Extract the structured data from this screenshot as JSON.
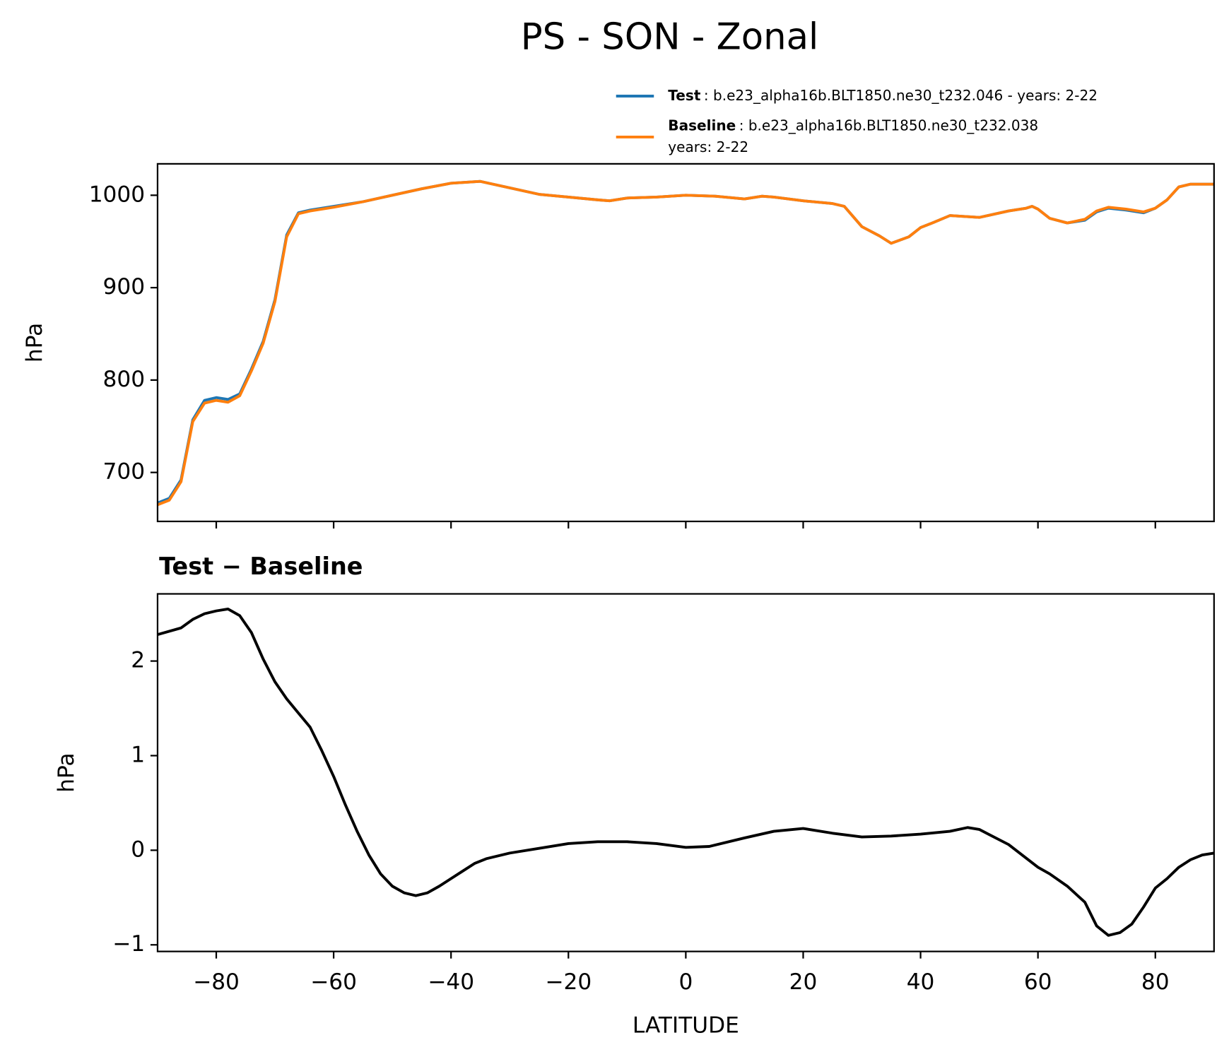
{
  "chart_data": [
    {
      "type": "line",
      "title": "PS - SON - Zonal",
      "ylabel": "hPa",
      "x": [
        -90,
        -88,
        -86,
        -84,
        -82,
        -80,
        -78,
        -76,
        -74,
        -72,
        -70,
        -68,
        -66,
        -64,
        -60,
        -55,
        -50,
        -45,
        -40,
        -35,
        -30,
        -25,
        -20,
        -15,
        -13,
        -10,
        -5,
        0,
        5,
        10,
        13,
        15,
        20,
        25,
        27,
        30,
        33,
        35,
        38,
        40,
        42,
        45,
        50,
        55,
        58,
        59,
        60,
        62,
        65,
        68,
        70,
        72,
        75,
        78,
        80,
        82,
        84,
        86,
        88,
        90
      ],
      "series": [
        {
          "name": "Test",
          "description": [
            ": b.e23_alpha16b.BLT1850.ne30_t232.046 - years: 2-22"
          ],
          "color": "#1f77b4",
          "values": [
            667,
            672,
            692,
            757,
            778,
            781,
            779,
            785,
            812,
            842,
            887,
            957,
            981,
            984,
            988,
            993,
            1000,
            1007,
            1013,
            1015,
            1008,
            1001,
            998,
            995,
            994,
            997,
            998,
            1000,
            999,
            996,
            999,
            998,
            994,
            991,
            988,
            966,
            956,
            948,
            955,
            965,
            970,
            978,
            976,
            983,
            986,
            988,
            985,
            975,
            970,
            973,
            982,
            986,
            984,
            981,
            986,
            995,
            1009,
            1012,
            1012,
            1012
          ]
        },
        {
          "name": "Baseline",
          "description": [
            ": b.e23_alpha16b.BLT1850.ne30_t232.038",
            "years: 2-22"
          ],
          "color": "#ff7f0e",
          "values": [
            665,
            670,
            690,
            755,
            775,
            778,
            776,
            783,
            810,
            840,
            885,
            955,
            980,
            983,
            987,
            993,
            1000,
            1007,
            1013,
            1015,
            1008,
            1001,
            998,
            995,
            994,
            997,
            998,
            1000,
            999,
            996,
            999,
            998,
            994,
            991,
            988,
            966,
            956,
            948,
            955,
            965,
            970,
            978,
            976,
            983,
            986,
            988,
            985,
            975,
            970,
            974,
            983,
            987,
            985,
            982,
            986,
            995,
            1009,
            1012,
            1012,
            1012
          ]
        }
      ],
      "xlim": [
        -90,
        90
      ],
      "xticks": [
        -80,
        -60,
        -40,
        -20,
        0,
        20,
        40,
        60,
        80
      ],
      "ylim": [
        647,
        1034
      ],
      "yticks": [
        700,
        800,
        900,
        1000
      ]
    },
    {
      "type": "line",
      "title": "Test − Baseline",
      "ylabel": "hPa",
      "xlabel": "LATITUDE",
      "color": "#000000",
      "x": [
        -90,
        -86,
        -84,
        -82,
        -80,
        -78,
        -76,
        -74,
        -72,
        -70,
        -68,
        -66,
        -64,
        -62,
        -60,
        -58,
        -56,
        -54,
        -52,
        -50,
        -48,
        -46,
        -44,
        -42,
        -40,
        -38,
        -36,
        -34,
        -32,
        -30,
        -25,
        -20,
        -15,
        -10,
        -5,
        0,
        4,
        10,
        15,
        20,
        25,
        30,
        35,
        40,
        45,
        48,
        50,
        55,
        60,
        62,
        65,
        68,
        70,
        72,
        74,
        76,
        78,
        80,
        82,
        84,
        86,
        88,
        90
      ],
      "values": [
        2.28,
        2.35,
        2.44,
        2.5,
        2.53,
        2.55,
        2.48,
        2.3,
        2.02,
        1.78,
        1.6,
        1.45,
        1.3,
        1.05,
        0.78,
        0.48,
        0.2,
        -0.05,
        -0.25,
        -0.38,
        -0.45,
        -0.48,
        -0.45,
        -0.38,
        -0.3,
        -0.22,
        -0.14,
        -0.09,
        -0.06,
        -0.03,
        0.02,
        0.07,
        0.09,
        0.09,
        0.07,
        0.03,
        0.04,
        0.13,
        0.2,
        0.23,
        0.18,
        0.14,
        0.15,
        0.17,
        0.2,
        0.24,
        0.22,
        0.06,
        -0.18,
        -0.25,
        -0.38,
        -0.55,
        -0.8,
        -0.9,
        -0.87,
        -0.78,
        -0.6,
        -0.4,
        -0.3,
        -0.18,
        -0.1,
        -0.05,
        -0.03
      ],
      "xlim": [
        -90,
        90
      ],
      "xticks": [
        {
          "value": -80,
          "label": "−80"
        },
        {
          "value": -60,
          "label": "−60"
        },
        {
          "value": -40,
          "label": "−40"
        },
        {
          "value": -20,
          "label": "−20"
        },
        0,
        20,
        40,
        60,
        80
      ],
      "ylim": [
        -1.07,
        2.71
      ],
      "yticks": [
        {
          "value": -1,
          "label": "−1"
        },
        0,
        1,
        2
      ]
    }
  ]
}
